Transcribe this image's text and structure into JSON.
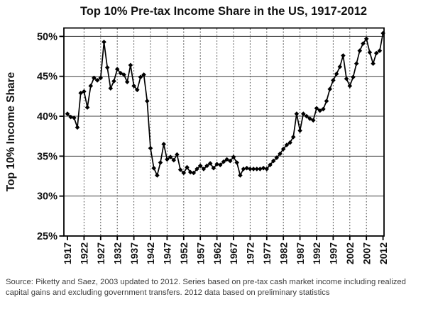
{
  "chart_data": {
    "type": "line",
    "title": "Top 10% Pre-tax Income Share in the US, 1917-2012",
    "ylabel": "Top 10% Income Share",
    "xlabel": "",
    "legend_position": "none",
    "line_color": "#000000",
    "marker": "diamond",
    "grid": {
      "horizontal": "solid",
      "vertical": "dotted"
    },
    "ylim": [
      25,
      51
    ],
    "yticks": [
      25,
      30,
      35,
      40,
      45,
      50
    ],
    "ytick_labels": [
      "25%",
      "30%",
      "35%",
      "40%",
      "45%",
      "50%"
    ],
    "xticks": [
      1917,
      1922,
      1927,
      1932,
      1937,
      1942,
      1947,
      1952,
      1957,
      1962,
      1967,
      1972,
      1977,
      1982,
      1987,
      1992,
      1997,
      2002,
      2007,
      2012
    ],
    "x": [
      1917,
      1918,
      1919,
      1920,
      1921,
      1922,
      1923,
      1924,
      1925,
      1926,
      1927,
      1928,
      1929,
      1930,
      1931,
      1932,
      1933,
      1934,
      1935,
      1936,
      1937,
      1938,
      1939,
      1940,
      1941,
      1942,
      1943,
      1944,
      1945,
      1946,
      1947,
      1948,
      1949,
      1950,
      1951,
      1952,
      1953,
      1954,
      1955,
      1956,
      1957,
      1958,
      1959,
      1960,
      1961,
      1962,
      1963,
      1964,
      1965,
      1966,
      1967,
      1968,
      1969,
      1970,
      1971,
      1972,
      1973,
      1974,
      1975,
      1976,
      1977,
      1978,
      1979,
      1980,
      1981,
      1982,
      1983,
      1984,
      1985,
      1986,
      1987,
      1988,
      1989,
      1990,
      1991,
      1992,
      1993,
      1994,
      1995,
      1996,
      1997,
      1998,
      1999,
      2000,
      2001,
      2002,
      2003,
      2004,
      2005,
      2006,
      2007,
      2008,
      2009,
      2010,
      2011,
      2012
    ],
    "values": [
      40.3,
      39.9,
      39.8,
      38.6,
      42.9,
      43.1,
      41.1,
      43.8,
      44.8,
      44.5,
      44.8,
      49.3,
      46.1,
      43.5,
      44.4,
      45.9,
      45.4,
      45.2,
      44.3,
      46.4,
      43.8,
      43.3,
      44.9,
      45.2,
      41.9,
      36.0,
      33.5,
      32.6,
      34.2,
      36.5,
      34.6,
      34.9,
      34.5,
      35.2,
      33.3,
      32.9,
      33.6,
      33.0,
      32.9,
      33.4,
      33.8,
      33.4,
      33.8,
      34.1,
      33.5,
      34.0,
      33.9,
      34.3,
      34.6,
      34.4,
      34.9,
      34.2,
      32.6,
      33.4,
      33.5,
      33.4,
      33.4,
      33.4,
      33.4,
      33.5,
      33.4,
      33.9,
      34.4,
      34.8,
      35.3,
      35.9,
      36.4,
      36.7,
      37.4,
      40.3,
      38.2,
      40.3,
      40.0,
      39.7,
      39.5,
      41.0,
      40.7,
      40.9,
      41.9,
      43.4,
      44.5,
      45.3,
      46.2,
      47.6,
      44.7,
      43.8,
      44.9,
      46.6,
      48.2,
      49.1,
      49.7,
      48.0,
      46.6,
      47.9,
      48.2,
      50.4
    ]
  },
  "source_note": {
    "line1": "Source: Piketty and Saez, 2003 updated to 2012. Series based on pre-tax cash market income including realized",
    "line2": "capital gains and excluding government transfers. 2012 data based on preliminary statistics"
  }
}
